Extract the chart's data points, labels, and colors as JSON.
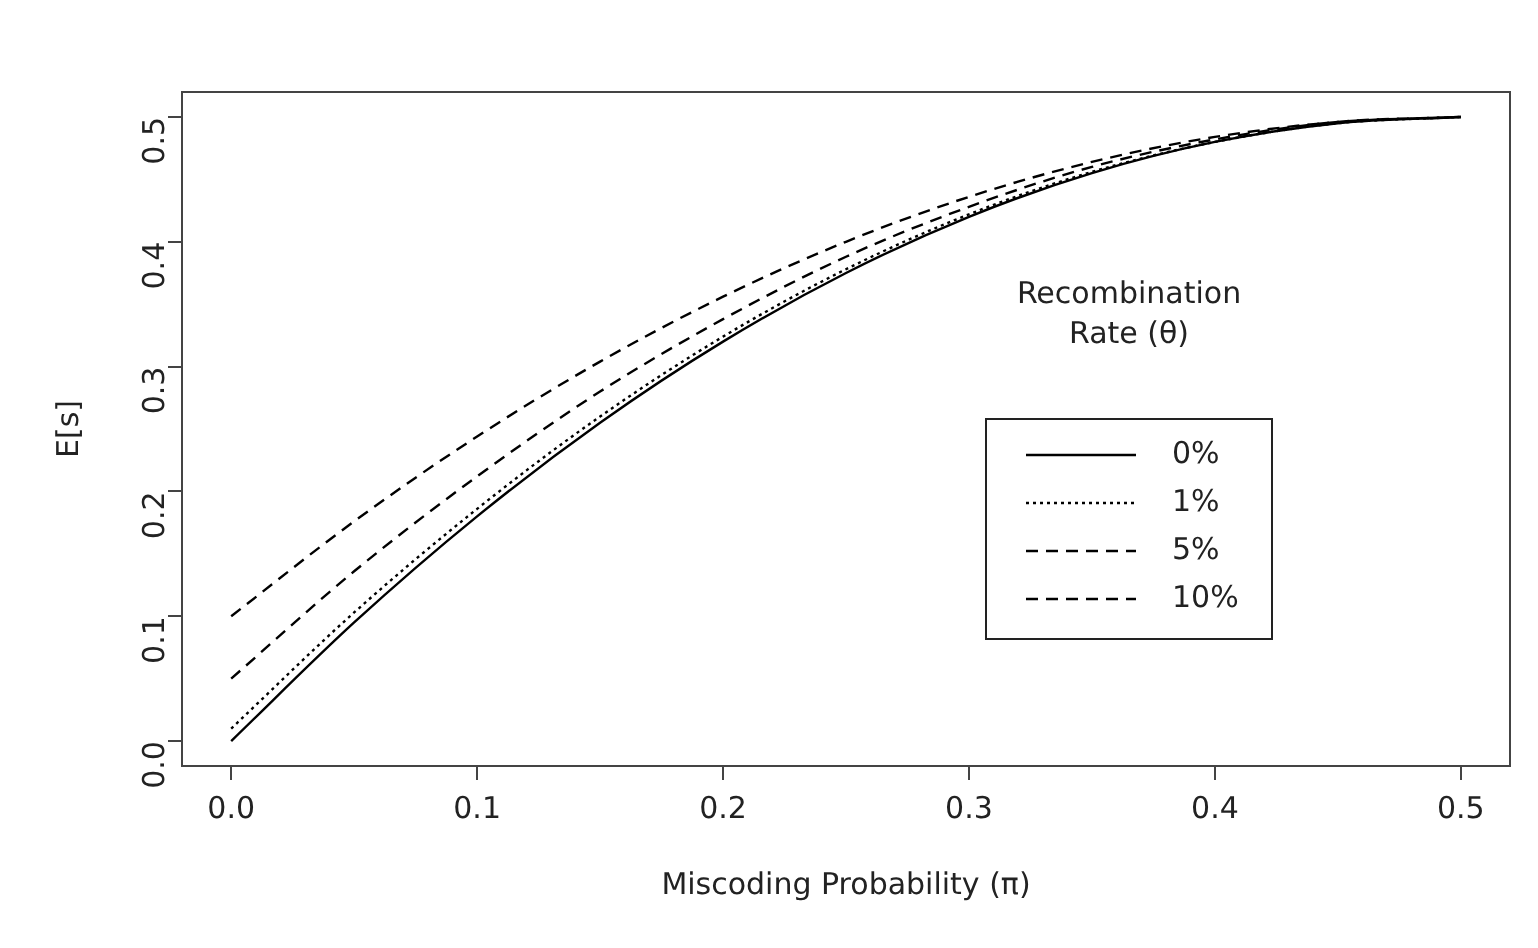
{
  "chart_data": {
    "type": "line",
    "xlabel": "Miscoding Probability (π)",
    "ylabel": "E[s]",
    "legend_title": "Recombination Rate (θ)",
    "legend": "right",
    "grid": false,
    "marker": "none",
    "x": [
      0,
      0.05,
      0.1,
      0.15,
      0.2,
      0.25,
      0.3,
      0.35,
      0.4,
      0.45,
      0.5
    ],
    "xlim": [
      -0.02,
      0.52
    ],
    "xticks": [
      {
        "value": 0,
        "label": "0.0"
      },
      0.1,
      0.2,
      0.3,
      0.4,
      0.5
    ],
    "ylim": [
      -0.02,
      0.52
    ],
    "yticks": [
      {
        "value": 0,
        "label": "0.0"
      },
      0.1,
      0.2,
      0.3,
      0.4,
      0.5
    ],
    "series": [
      {
        "name": "0%",
        "color": "#000000",
        "line_style": "solid",
        "values": [
          0,
          0.095,
          0.18,
          0.255,
          0.32,
          0.375,
          0.42,
          0.455,
          0.48,
          0.495,
          0.5
        ]
      },
      {
        "name": "1%",
        "color": "#000000",
        "line_style": "dotted",
        "values": [
          0.01,
          0.103,
          0.186,
          0.26,
          0.324,
          0.378,
          0.422,
          0.456,
          0.48,
          0.495,
          0.5
        ]
      },
      {
        "name": "5%",
        "color": "#000000",
        "line_style": "dashed",
        "values": [
          0.05,
          0.136,
          0.212,
          0.28,
          0.338,
          0.388,
          0.428,
          0.46,
          0.482,
          0.496,
          0.5
        ]
      },
      {
        "name": "10%",
        "color": "#000000",
        "line_style": "dashed",
        "values": [
          0.1,
          0.176,
          0.244,
          0.304,
          0.356,
          0.4,
          0.436,
          0.464,
          0.484,
          0.496,
          0.5
        ]
      }
    ]
  }
}
